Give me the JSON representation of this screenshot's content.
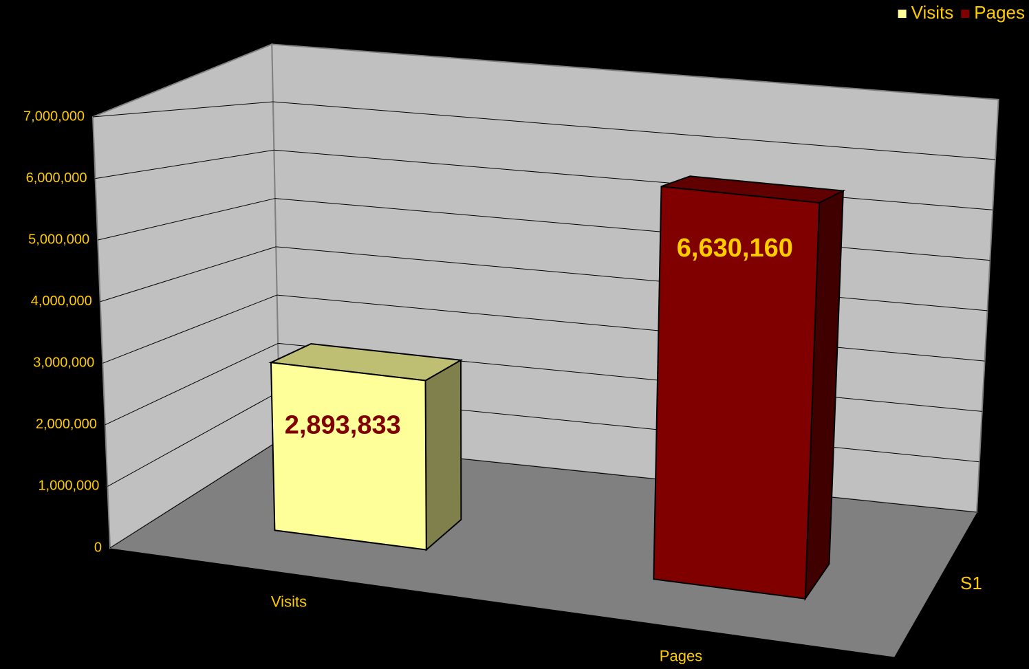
{
  "chart_data": {
    "type": "bar3d",
    "categories": [
      "Visits",
      "Pages"
    ],
    "z_categories": [
      "S1"
    ],
    "series": [
      {
        "name": "Visits",
        "color": "#ffff99",
        "label_color": "#800000",
        "values": [
          2893833,
          null
        ],
        "value_labels": [
          "2,893,833",
          null
        ]
      },
      {
        "name": "Pages",
        "color": "#800000",
        "label_color": "#ffcc00",
        "values": [
          null,
          6630160
        ],
        "value_labels": [
          null,
          "6,630,160"
        ]
      }
    ],
    "ylim": [
      0,
      7000000
    ],
    "yticks": [
      {
        "value": 0,
        "label": "0"
      },
      {
        "value": 1000000,
        "label": "1,000,000"
      },
      {
        "value": 2000000,
        "label": "2,000,000"
      },
      {
        "value": 3000000,
        "label": "3,000,000"
      },
      {
        "value": 4000000,
        "label": "4,000,000"
      },
      {
        "value": 5000000,
        "label": "5,000,000"
      },
      {
        "value": 6000000,
        "label": "6,000,000"
      },
      {
        "value": 7000000,
        "label": "7,000,000"
      }
    ],
    "grid": true,
    "legend": "top-right",
    "text_color": "#ffcc00"
  }
}
